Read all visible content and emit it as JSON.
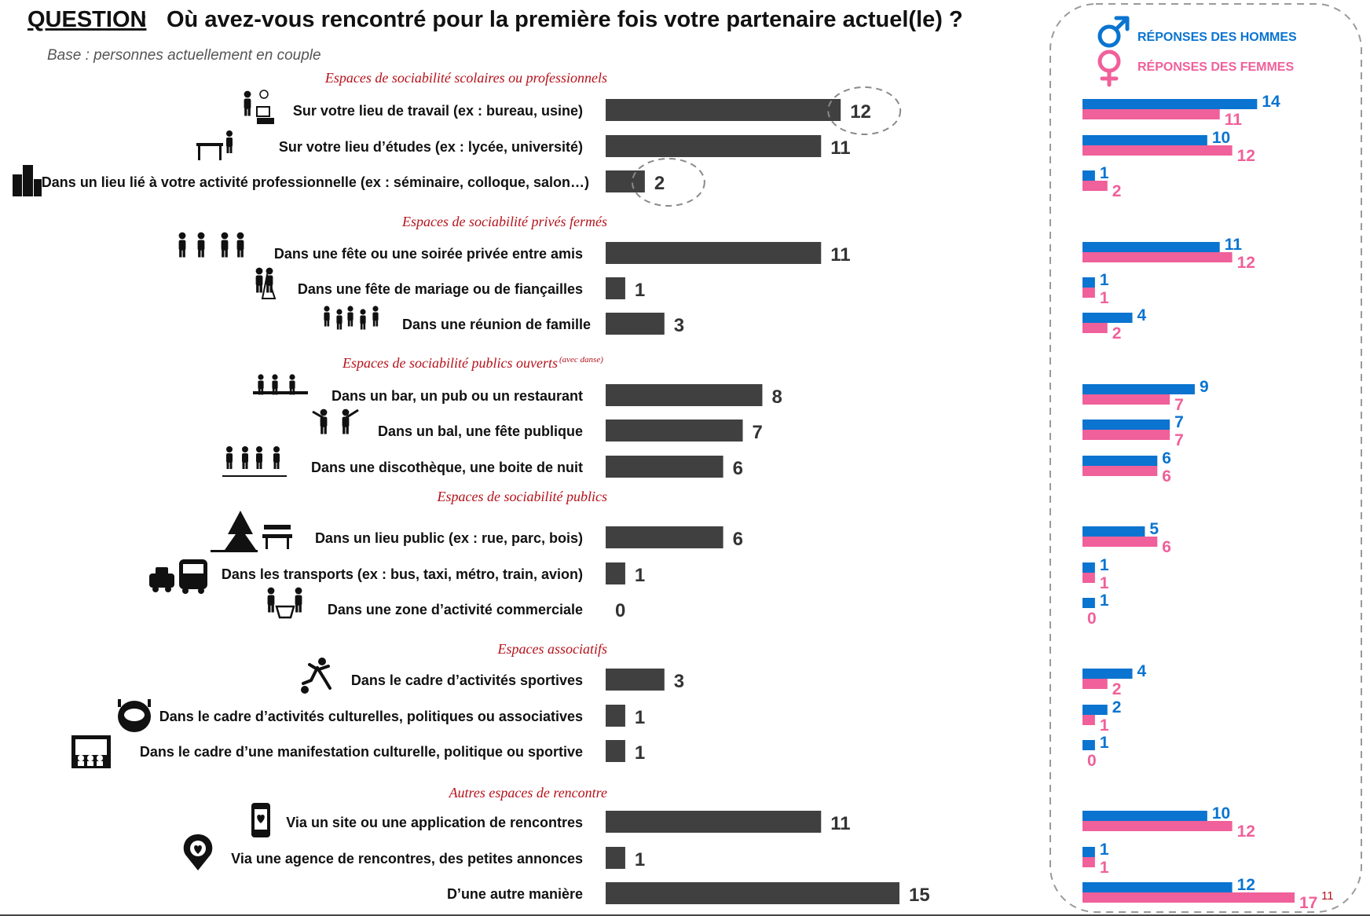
{
  "header": {
    "question_label": "QUESTION",
    "question_sep": " :",
    "question_text": "Où avez-vous rencontré pour la première fois votre partenaire actuel(le) ?",
    "base": "Base : personnes actuellement en couple"
  },
  "legend": {
    "men": "RÉPONSES DES HOMMES",
    "women": "RÉPONSES DES FEMMES",
    "men_icon": "male-symbol-icon",
    "women_icon": "female-symbol-icon"
  },
  "colors": {
    "total_bar": "#404040",
    "men": "#0a74d0",
    "women": "#f0609a",
    "section": "#b5121b"
  },
  "sections": [
    {
      "title": "Espaces de sociabilité scolaires ou professionnels",
      "sup": ""
    },
    {
      "title": "Espaces de sociabilité privés fermés",
      "sup": ""
    },
    {
      "title": "Espaces de sociabilité publics ouverts",
      "sup": "(avec danse)"
    },
    {
      "title": "Espaces de sociabilité publics",
      "sup": ""
    },
    {
      "title": "Espaces associatifs",
      "sup": ""
    },
    {
      "title": "Autres espaces de rencontre",
      "sup": ""
    }
  ],
  "chart_data": [
    {
      "type": "bar",
      "orientation": "horizontal",
      "series": [
        {
          "name": "",
          "values": [
            12,
            11,
            2,
            11,
            1,
            3,
            8,
            7,
            6,
            6,
            1,
            0,
            3,
            1,
            1,
            11,
            1,
            15
          ]
        }
      ],
      "categories": [
        "Sur votre lieu de travail (ex : bureau, usine)",
        "Sur votre lieu d’études (ex : lycée, université)",
        "Dans un lieu lié à votre activité professionnelle  (ex : séminaire, colloque,  salon…)",
        "Dans une fête ou une soirée privée entre amis",
        "Dans une fête de mariage ou de fiançailles",
        "Dans une réunion de famille",
        "Dans un bar, un pub ou un restaurant",
        "Dans un bal, une fête publique",
        "Dans une discothèque, une boite de nuit",
        "Dans un lieu public (ex : rue, parc, bois)",
        "Dans les transports (ex : bus, taxi, métro, train, avion)",
        "Dans une zone d’activité commerciale",
        "Dans le cadre d’activités sportives",
        "Dans le cadre d’activités culturelles, politiques ou associatives",
        "Dans le cadre d’une manifestation culturelle, politique ou sportive",
        "Via un site ou une application de rencontres",
        "Via une agence de rencontres, des petites annonces",
        "D’une autre manière"
      ],
      "icons": [
        "office-worker-icon",
        "student-desk-icon",
        "office-buildings-icon",
        "party-friends-icon",
        "wedding-couple-icon",
        "family-group-icon",
        "bar-restaurant-icon",
        "dancing-couple-icon",
        "nightclub-dancers-icon",
        "park-bench-icon",
        "taxi-bus-icon",
        "shopping-cart-icon",
        "runner-ball-icon",
        "stadium-icon",
        "theater-stage-icon",
        "smartphone-heart-icon",
        "heart-pin-icon",
        ""
      ],
      "section_index": [
        0,
        0,
        0,
        1,
        1,
        1,
        2,
        2,
        2,
        3,
        3,
        3,
        4,
        4,
        4,
        5,
        5,
        5
      ],
      "xlim": [
        0,
        15
      ],
      "highlighted": [
        0,
        2
      ],
      "grid": false,
      "legend": "none"
    },
    {
      "type": "bar",
      "orientation": "horizontal",
      "series": [
        {
          "name": "RÉPONSES DES HOMMES",
          "values": [
            14,
            10,
            1,
            11,
            1,
            4,
            9,
            7,
            6,
            5,
            1,
            1,
            4,
            2,
            1,
            10,
            1,
            12
          ]
        },
        {
          "name": "RÉPONSES DES FEMMES",
          "values": [
            11,
            12,
            2,
            12,
            1,
            2,
            7,
            7,
            6,
            6,
            1,
            0,
            2,
            1,
            0,
            12,
            1,
            17
          ]
        }
      ],
      "annotations": [
        {
          "row": 17,
          "text": "11"
        }
      ],
      "xlim": [
        0,
        17
      ],
      "grid": false,
      "legend": "top-right"
    }
  ]
}
